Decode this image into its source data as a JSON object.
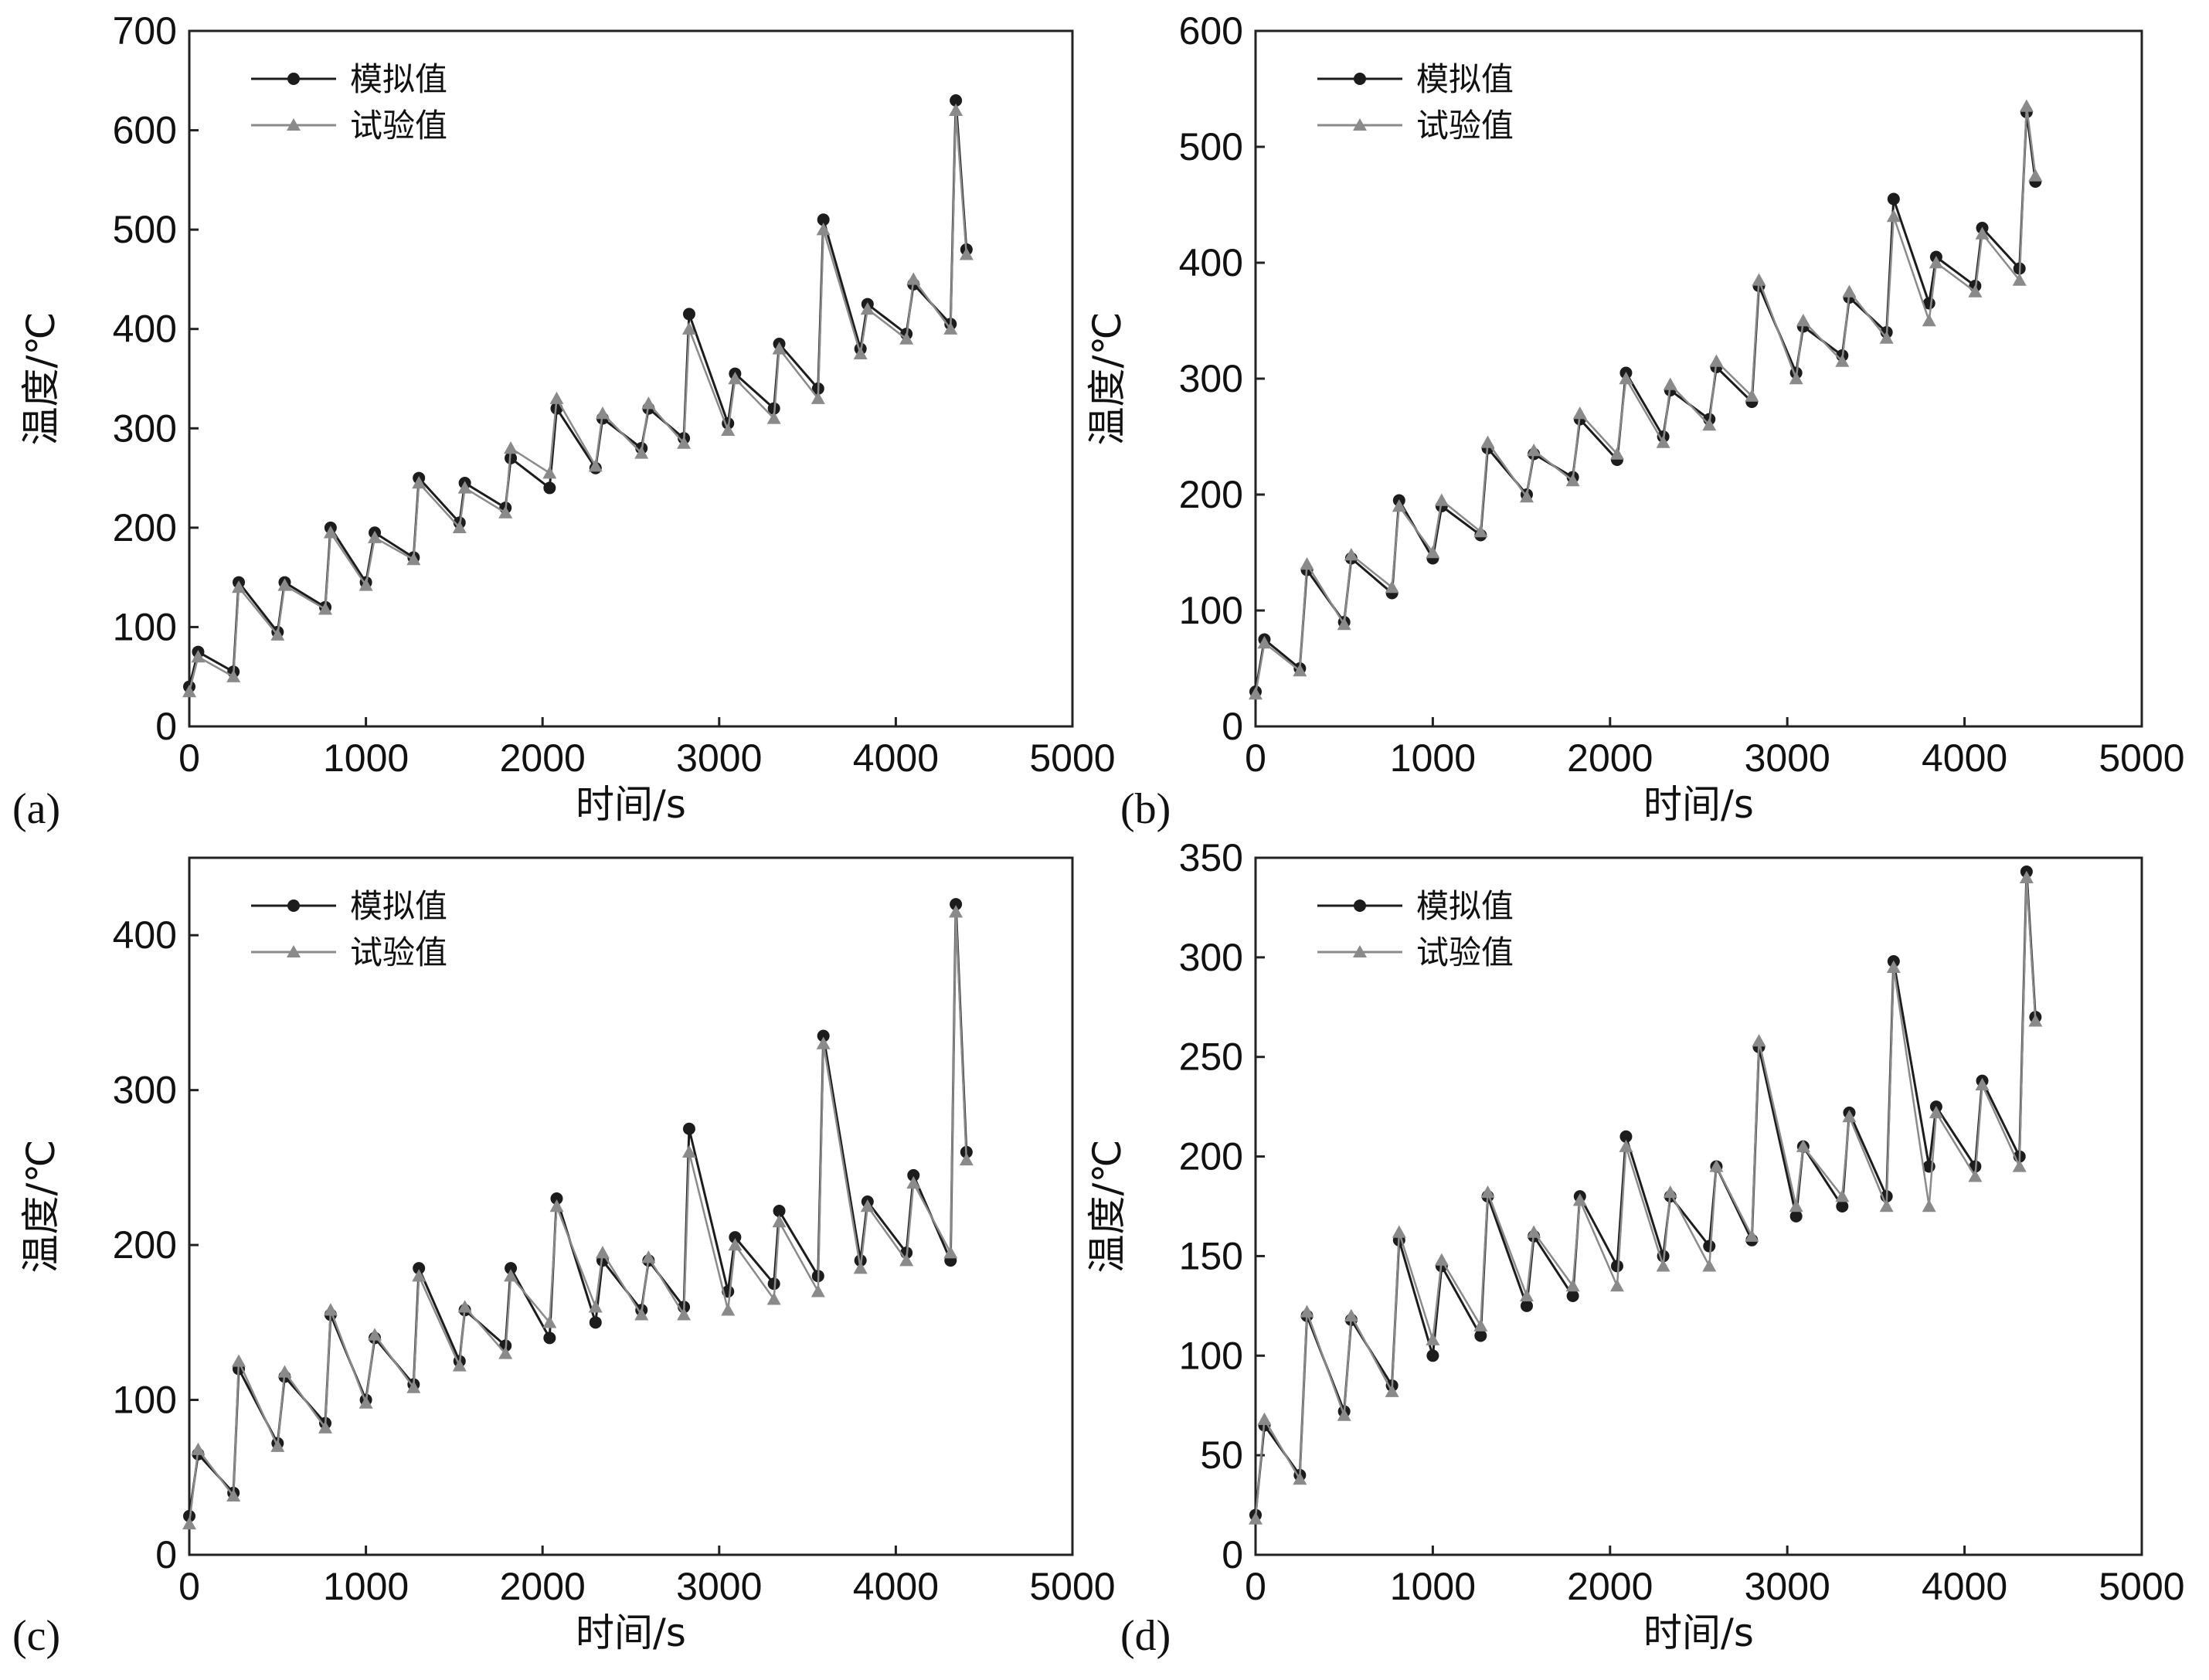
{
  "colors": {
    "sim": "#1c1c1c",
    "exp": "#8a8a8a",
    "frame": "#222222"
  },
  "chart_data": [
    {
      "type": "line",
      "panel_label": "(a)",
      "xlabel": "时间/s",
      "ylabel": "温度/℃",
      "xlim": [
        0,
        5000
      ],
      "ylim": [
        0,
        700
      ],
      "xticks": [
        "0",
        "1000",
        "2000",
        "3000",
        "4000",
        "5000"
      ],
      "yticks": [
        "0",
        "100",
        "200",
        "300",
        "400",
        "500",
        "600",
        "700"
      ],
      "legend": {
        "position": "top-left"
      },
      "series": [
        {
          "name": "模拟值",
          "marker": "circle",
          "x": [
            0,
            50,
            250,
            280,
            500,
            540,
            770,
            800,
            1000,
            1050,
            1270,
            1300,
            1530,
            1560,
            1790,
            1820,
            2040,
            2080,
            2300,
            2340,
            2560,
            2600,
            2800,
            2830,
            3050,
            3090,
            3310,
            3340,
            3560,
            3590,
            3800,
            3840,
            4060,
            4100,
            4310,
            4340,
            4400
          ],
          "y": [
            40,
            75,
            55,
            145,
            95,
            145,
            120,
            200,
            145,
            195,
            170,
            250,
            205,
            245,
            220,
            270,
            240,
            320,
            260,
            310,
            280,
            320,
            290,
            415,
            305,
            355,
            320,
            385,
            340,
            510,
            380,
            425,
            395,
            445,
            405,
            630,
            480
          ]
        },
        {
          "name": "试验值",
          "marker": "triangle",
          "x": [
            0,
            50,
            250,
            280,
            500,
            540,
            770,
            800,
            1000,
            1050,
            1270,
            1300,
            1530,
            1560,
            1790,
            1820,
            2040,
            2080,
            2300,
            2340,
            2560,
            2600,
            2800,
            2830,
            3050,
            3090,
            3310,
            3340,
            3560,
            3590,
            3800,
            3840,
            4060,
            4100,
            4310,
            4340,
            4400
          ],
          "y": [
            35,
            70,
            50,
            140,
            92,
            142,
            118,
            195,
            142,
            190,
            168,
            245,
            200,
            240,
            215,
            280,
            255,
            330,
            262,
            315,
            275,
            325,
            285,
            400,
            298,
            350,
            310,
            380,
            330,
            500,
            375,
            420,
            390,
            450,
            400,
            620,
            475
          ]
        }
      ]
    },
    {
      "type": "line",
      "panel_label": "(b)",
      "xlabel": "时间/s",
      "ylabel": "温度/℃",
      "xlim": [
        0,
        5000
      ],
      "ylim": [
        0,
        600
      ],
      "xticks": [
        "0",
        "1000",
        "2000",
        "3000",
        "4000",
        "5000"
      ],
      "yticks": [
        "0",
        "100",
        "200",
        "300",
        "400",
        "500",
        "600"
      ],
      "legend": {
        "position": "top-left"
      },
      "series": [
        {
          "name": "模拟值",
          "marker": "circle",
          "x": [
            0,
            50,
            250,
            290,
            500,
            540,
            770,
            810,
            1000,
            1050,
            1270,
            1310,
            1530,
            1570,
            1790,
            1830,
            2040,
            2090,
            2300,
            2340,
            2560,
            2600,
            2800,
            2840,
            3050,
            3090,
            3310,
            3350,
            3560,
            3600,
            3800,
            3840,
            4060,
            4100,
            4310,
            4350,
            4400
          ],
          "y": [
            30,
            75,
            50,
            135,
            90,
            145,
            115,
            195,
            145,
            190,
            165,
            240,
            200,
            235,
            215,
            265,
            230,
            305,
            250,
            290,
            265,
            310,
            280,
            380,
            305,
            345,
            320,
            370,
            340,
            455,
            365,
            405,
            380,
            430,
            395,
            530,
            470
          ]
        },
        {
          "name": "试验值",
          "marker": "triangle",
          "x": [
            0,
            50,
            250,
            290,
            500,
            540,
            770,
            810,
            1000,
            1050,
            1270,
            1310,
            1530,
            1570,
            1790,
            1830,
            2040,
            2090,
            2300,
            2340,
            2560,
            2600,
            2800,
            2840,
            3050,
            3090,
            3310,
            3350,
            3560,
            3600,
            3800,
            3840,
            4060,
            4100,
            4310,
            4350,
            4400
          ],
          "y": [
            28,
            72,
            48,
            140,
            88,
            148,
            120,
            190,
            150,
            195,
            168,
            245,
            198,
            238,
            212,
            270,
            235,
            300,
            245,
            295,
            260,
            315,
            285,
            385,
            300,
            350,
            315,
            375,
            335,
            440,
            350,
            400,
            375,
            425,
            385,
            535,
            475
          ]
        }
      ]
    },
    {
      "type": "line",
      "panel_label": "(c)",
      "xlabel": "时间/s",
      "ylabel": "温度/℃",
      "xlim": [
        0,
        5000
      ],
      "ylim": [
        0,
        450
      ],
      "xticks": [
        "0",
        "1000",
        "2000",
        "3000",
        "4000",
        "5000"
      ],
      "yticks": [
        "0",
        "100",
        "200",
        "300",
        "400"
      ],
      "legend": {
        "position": "top-left"
      },
      "series": [
        {
          "name": "模拟值",
          "marker": "circle",
          "x": [
            0,
            50,
            250,
            280,
            500,
            540,
            770,
            800,
            1000,
            1050,
            1270,
            1300,
            1530,
            1560,
            1790,
            1820,
            2040,
            2080,
            2300,
            2340,
            2560,
            2600,
            2800,
            2830,
            3050,
            3090,
            3310,
            3340,
            3560,
            3590,
            3800,
            3840,
            4060,
            4100,
            4310,
            4340,
            4400
          ],
          "y": [
            25,
            65,
            40,
            120,
            72,
            115,
            85,
            155,
            100,
            140,
            110,
            185,
            125,
            158,
            135,
            185,
            140,
            230,
            150,
            190,
            158,
            190,
            160,
            275,
            170,
            205,
            175,
            222,
            180,
            335,
            190,
            228,
            195,
            245,
            190,
            420,
            260
          ]
        },
        {
          "name": "试验值",
          "marker": "triangle",
          "x": [
            0,
            50,
            250,
            280,
            500,
            540,
            770,
            800,
            1000,
            1050,
            1270,
            1300,
            1530,
            1560,
            1790,
            1820,
            2040,
            2080,
            2300,
            2340,
            2560,
            2600,
            2800,
            2830,
            3050,
            3090,
            3310,
            3340,
            3560,
            3590,
            3800,
            3840,
            4060,
            4100,
            4310,
            4340,
            4400
          ],
          "y": [
            20,
            68,
            38,
            125,
            70,
            118,
            82,
            158,
            98,
            142,
            108,
            180,
            122,
            160,
            130,
            180,
            150,
            225,
            160,
            195,
            155,
            192,
            155,
            260,
            158,
            200,
            165,
            215,
            170,
            330,
            185,
            225,
            190,
            240,
            195,
            415,
            255
          ]
        }
      ]
    },
    {
      "type": "line",
      "panel_label": "(d)",
      "xlabel": "时间/s",
      "ylabel": "温度/℃",
      "xlim": [
        0,
        5000
      ],
      "ylim": [
        0,
        350
      ],
      "xticks": [
        "0",
        "1000",
        "2000",
        "3000",
        "4000",
        "5000"
      ],
      "yticks": [
        "0",
        "50",
        "100",
        "150",
        "200",
        "250",
        "300",
        "350"
      ],
      "legend": {
        "position": "top-left"
      },
      "series": [
        {
          "name": "模拟值",
          "marker": "circle",
          "x": [
            0,
            50,
            250,
            290,
            500,
            540,
            770,
            810,
            1000,
            1050,
            1270,
            1310,
            1530,
            1570,
            1790,
            1830,
            2040,
            2090,
            2300,
            2340,
            2560,
            2600,
            2800,
            2840,
            3050,
            3090,
            3310,
            3350,
            3560,
            3600,
            3800,
            3840,
            4060,
            4100,
            4310,
            4350,
            4400
          ],
          "y": [
            20,
            65,
            40,
            120,
            72,
            118,
            85,
            158,
            100,
            145,
            110,
            180,
            125,
            160,
            130,
            180,
            145,
            210,
            150,
            180,
            155,
            195,
            158,
            255,
            170,
            205,
            175,
            222,
            180,
            298,
            195,
            225,
            195,
            238,
            200,
            343,
            270
          ]
        },
        {
          "name": "试验值",
          "marker": "triangle",
          "x": [
            0,
            50,
            250,
            290,
            500,
            540,
            770,
            810,
            1000,
            1050,
            1270,
            1310,
            1530,
            1570,
            1790,
            1830,
            2040,
            2090,
            2300,
            2340,
            2560,
            2600,
            2800,
            2840,
            3050,
            3090,
            3310,
            3350,
            3560,
            3600,
            3800,
            3840,
            4060,
            4100,
            4310,
            4350,
            4400
          ],
          "y": [
            18,
            68,
            38,
            122,
            70,
            120,
            82,
            162,
            108,
            148,
            115,
            182,
            130,
            162,
            135,
            178,
            135,
            205,
            145,
            182,
            145,
            195,
            160,
            258,
            175,
            205,
            180,
            220,
            175,
            295,
            175,
            222,
            190,
            236,
            195,
            340,
            268
          ]
        }
      ]
    }
  ]
}
